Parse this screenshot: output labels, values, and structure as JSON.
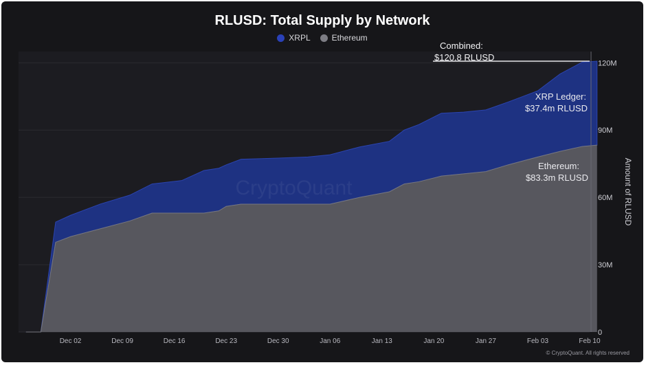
{
  "chart_data": {
    "type": "area",
    "stacked": true,
    "title": "RLUSD: Total Supply by Network",
    "ylabel": "Amount of RLUSD",
    "xlabel": "",
    "ylim": [
      0,
      125000000
    ],
    "y_ticks": [
      0,
      30000000,
      60000000,
      90000000,
      120000000
    ],
    "y_tick_labels": [
      "0",
      "30M",
      "60M",
      "90M",
      "120M"
    ],
    "y_axis_side": "right",
    "x_range": [
      "2024-11-25",
      "2025-02-10"
    ],
    "x_ticks": [
      "2024-12-02",
      "2024-12-09",
      "2024-12-16",
      "2024-12-23",
      "2024-12-30",
      "2025-01-06",
      "2025-01-13",
      "2025-01-20",
      "2025-01-27",
      "2025-02-03",
      "2025-02-10"
    ],
    "x_tick_labels": [
      "Dec 02",
      "Dec 09",
      "Dec 16",
      "Dec 23",
      "Dec 30",
      "Jan 06",
      "Jan 13",
      "Jan 20",
      "Jan 27",
      "Feb 03",
      "Feb 10"
    ],
    "grid": true,
    "legend": "top-center",
    "series": [
      {
        "name": "Ethereum",
        "color": "#57575e",
        "points": [
          [
            "2024-11-26",
            0
          ],
          [
            "2024-11-28",
            0
          ],
          [
            "2024-11-30",
            40000000
          ],
          [
            "2024-12-02",
            42500000
          ],
          [
            "2024-12-06",
            46000000
          ],
          [
            "2024-12-10",
            49500000
          ],
          [
            "2024-12-13",
            53000000
          ],
          [
            "2024-12-17",
            53000000
          ],
          [
            "2024-12-20",
            53000000
          ],
          [
            "2024-12-22",
            54000000
          ],
          [
            "2024-12-23",
            56000000
          ],
          [
            "2024-12-25",
            57000000
          ],
          [
            "2024-12-30",
            57000000
          ],
          [
            "2025-01-03",
            57000000
          ],
          [
            "2025-01-06",
            57000000
          ],
          [
            "2025-01-10",
            60000000
          ],
          [
            "2025-01-14",
            62500000
          ],
          [
            "2025-01-16",
            66000000
          ],
          [
            "2025-01-18",
            67000000
          ],
          [
            "2025-01-21",
            69500000
          ],
          [
            "2025-01-24",
            70500000
          ],
          [
            "2025-01-27",
            71500000
          ],
          [
            "2025-01-30",
            74500000
          ],
          [
            "2025-02-03",
            78000000
          ],
          [
            "2025-02-06",
            80500000
          ],
          [
            "2025-02-09",
            82700000
          ],
          [
            "2025-02-11",
            83300000
          ]
        ]
      },
      {
        "name": "XRPL",
        "color": "#1e3282",
        "points": [
          [
            "2024-11-26",
            0
          ],
          [
            "2024-11-28",
            0
          ],
          [
            "2024-11-30",
            9000000
          ],
          [
            "2024-12-02",
            9500000
          ],
          [
            "2024-12-06",
            11000000
          ],
          [
            "2024-12-10",
            11500000
          ],
          [
            "2024-12-13",
            13000000
          ],
          [
            "2024-12-17",
            14500000
          ],
          [
            "2024-12-20",
            19000000
          ],
          [
            "2024-12-22",
            19000000
          ],
          [
            "2024-12-23",
            18500000
          ],
          [
            "2024-12-25",
            20000000
          ],
          [
            "2024-12-30",
            20500000
          ],
          [
            "2025-01-03",
            21000000
          ],
          [
            "2025-01-06",
            22000000
          ],
          [
            "2025-01-10",
            22500000
          ],
          [
            "2025-01-14",
            22500000
          ],
          [
            "2025-01-16",
            24000000
          ],
          [
            "2025-01-18",
            25500000
          ],
          [
            "2025-01-21",
            28000000
          ],
          [
            "2025-01-24",
            27500000
          ],
          [
            "2025-01-27",
            27500000
          ],
          [
            "2025-01-30",
            28000000
          ],
          [
            "2025-02-03",
            29500000
          ],
          [
            "2025-02-06",
            34500000
          ],
          [
            "2025-02-09",
            37600000
          ],
          [
            "2025-02-11",
            37400000
          ]
        ]
      }
    ],
    "annotations": {
      "combined_label": "Combined:",
      "combined_value": "$120.8 RLUSD",
      "xrp_label": "XRP Ledger:",
      "xrp_value": "$37.4m RLUSD",
      "eth_label": "Ethereum:",
      "eth_value": "$83.3m RLUSD"
    },
    "watermark": "CryptoQuant"
  },
  "footer": "© CryptoQuant. All rights reserved"
}
